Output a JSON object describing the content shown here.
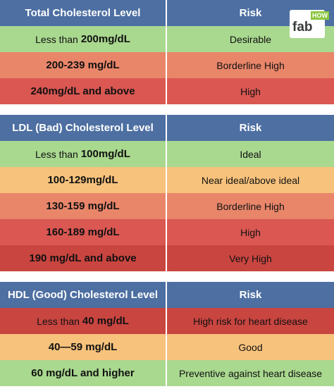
{
  "logo": {
    "main": "fab",
    "small": "HOW"
  },
  "tables": [
    {
      "header": [
        "Total Cholesterol Level",
        "Risk"
      ],
      "rows": [
        {
          "level": {
            "text": "Less than",
            "bold": "200mg/dL"
          },
          "risk": "Desirable",
          "color": "#a9d88f"
        },
        {
          "level": {
            "bold": "200-239 mg/dL"
          },
          "risk": "Borderline High",
          "color": "#e9866a"
        },
        {
          "level": {
            "bold": "240mg/dL and above"
          },
          "risk": "High",
          "color": "#da5752"
        }
      ]
    },
    {
      "header": [
        "LDL (Bad) Cholesterol Level",
        "Risk"
      ],
      "rows": [
        {
          "level": {
            "text": "Less than",
            "bold": "100mg/dL"
          },
          "risk": "Ideal",
          "color": "#a9d88f"
        },
        {
          "level": {
            "bold": "100-129mg/dL"
          },
          "risk": "Near ideal/above ideal",
          "color": "#f7c27c"
        },
        {
          "level": {
            "bold": "130-159 mg/dL"
          },
          "risk": "Borderline High",
          "color": "#e9866a"
        },
        {
          "level": {
            "bold": "160-189 mg/dL"
          },
          "risk": "High",
          "color": "#da5752"
        },
        {
          "level": {
            "bold": "190 mg/dL and above"
          },
          "risk": "Very High",
          "color": "#c94540"
        }
      ]
    },
    {
      "header": [
        "HDL (Good) Cholesterol Level",
        "Risk"
      ],
      "rows": [
        {
          "level": {
            "text": "Less than",
            "bold": "40 mg/dL"
          },
          "risk": "High risk for heart disease",
          "color": "#c94540"
        },
        {
          "level": {
            "bold": "40—59 mg/dL"
          },
          "risk": "Good",
          "color": "#f7c27c"
        },
        {
          "level": {
            "bold": "60 mg/dL and higher"
          },
          "risk": "Preventive against heart disease",
          "color": "#a9d88f"
        }
      ]
    }
  ]
}
